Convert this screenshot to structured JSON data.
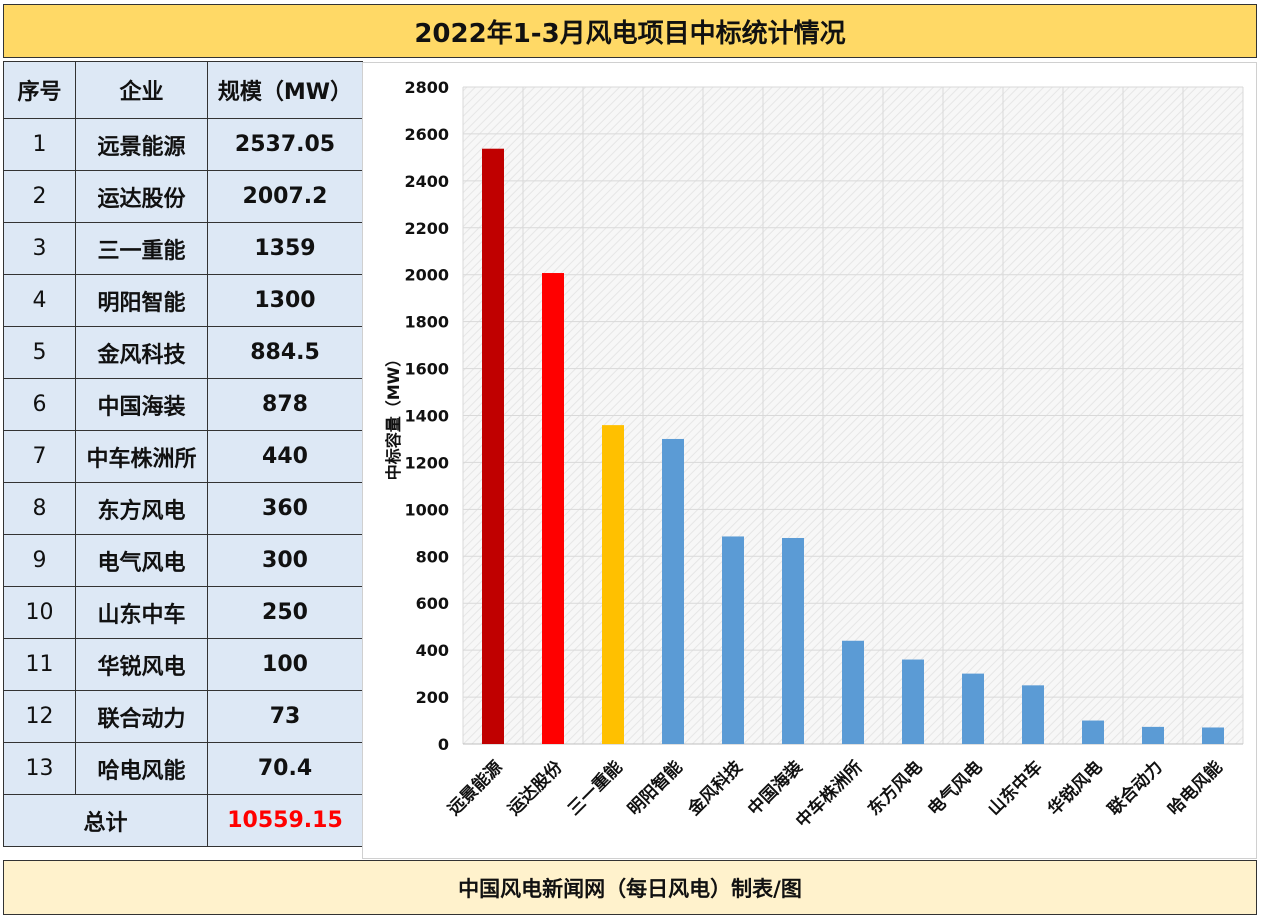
{
  "title": "2022年1-3月风电项目中标统计情况",
  "footer": "中国风电新闻网（每日风电）制表/图",
  "table": {
    "headers": [
      "序号",
      "企业",
      "规模（MW）"
    ],
    "rows": [
      {
        "idx": "1",
        "company": "远景能源",
        "mw": "2537.05"
      },
      {
        "idx": "2",
        "company": "运达股份",
        "mw": "2007.2"
      },
      {
        "idx": "3",
        "company": "三一重能",
        "mw": "1359"
      },
      {
        "idx": "4",
        "company": "明阳智能",
        "mw": "1300"
      },
      {
        "idx": "5",
        "company": "金风科技",
        "mw": "884.5"
      },
      {
        "idx": "6",
        "company": "中国海装",
        "mw": "878"
      },
      {
        "idx": "7",
        "company": "中车株洲所",
        "mw": "440"
      },
      {
        "idx": "8",
        "company": "东方风电",
        "mw": "360"
      },
      {
        "idx": "9",
        "company": "电气风电",
        "mw": "300"
      },
      {
        "idx": "10",
        "company": "山东中车",
        "mw": "250"
      },
      {
        "idx": "11",
        "company": "华锐风电",
        "mw": "100"
      },
      {
        "idx": "12",
        "company": "联合动力",
        "mw": "73"
      },
      {
        "idx": "13",
        "company": "哈电风能",
        "mw": "70.4"
      }
    ],
    "total_label": "总计",
    "total_value": "10559.15"
  },
  "chart_data": {
    "type": "bar",
    "categories": [
      "远景能源",
      "运达股份",
      "三一重能",
      "明阳智能",
      "金风科技",
      "中国海装",
      "中车株洲所",
      "东方风电",
      "电气风电",
      "山东中车",
      "华锐风电",
      "联合动力",
      "哈电风能"
    ],
    "values": [
      2537.05,
      2007.2,
      1359,
      1300,
      884.5,
      878,
      440,
      360,
      300,
      250,
      100,
      73,
      70.4
    ],
    "bar_colors": [
      "#c00000",
      "#ff0000",
      "#ffc000",
      "#5b9bd5",
      "#5b9bd5",
      "#5b9bd5",
      "#5b9bd5",
      "#5b9bd5",
      "#5b9bd5",
      "#5b9bd5",
      "#5b9bd5",
      "#5b9bd5",
      "#5b9bd5"
    ],
    "ylabel": "中标容量（MW）",
    "ylim": [
      0,
      2800
    ],
    "yticks": [
      0,
      200,
      400,
      600,
      800,
      1000,
      1200,
      1400,
      1600,
      1800,
      2000,
      2200,
      2400,
      2600,
      2800
    ],
    "grid": true
  }
}
